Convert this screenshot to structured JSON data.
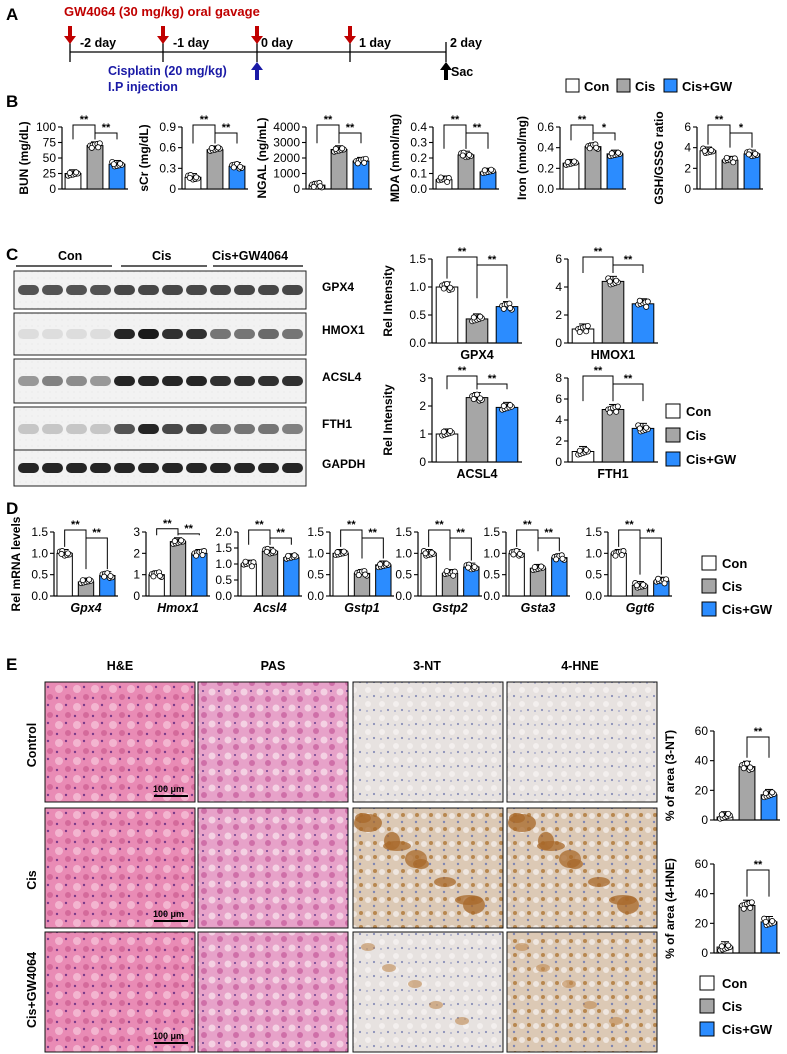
{
  "panels": {
    "A": "A",
    "B": "B",
    "C": "C",
    "D": "D",
    "E": "E"
  },
  "timeline": {
    "treatment": "GW4064 (30 mg/kg) oral gavage",
    "injection_line1": "Cisplatin (20 mg/kg)",
    "injection_line2": "I.P injection",
    "days": [
      "-2 day",
      "-1 day",
      "0 day",
      "1 day",
      "2 day"
    ],
    "sac": "Sac",
    "colors": {
      "gw": "#c00000",
      "cis": "#1a1aa6"
    }
  },
  "legend": {
    "items": [
      "Con",
      "Cis",
      "Cis+GW"
    ],
    "colors": [
      "#ffffff",
      "#a6a6a6",
      "#2b8cff"
    ]
  },
  "legend_c": {
    "items": [
      "Con",
      "Cis",
      "Cis+GW"
    ]
  },
  "western": {
    "groups": [
      "Con",
      "Cis",
      "Cis+GW4064"
    ],
    "bands": [
      "GPX4",
      "HMOX1",
      "ACSL4",
      "FTH1",
      "GAPDH"
    ]
  },
  "histology": {
    "columns": [
      "H&E",
      "PAS",
      "3-NT",
      "4-HNE"
    ],
    "rows": [
      "Control",
      "Cis",
      "Cis+GW4064"
    ],
    "scale_bar": "100 μm"
  },
  "chart_data": [
    {
      "id": "B1",
      "type": "bar",
      "ylabel": "BUN (mg/dL)",
      "ylim": [
        0,
        100
      ],
      "yticks": [
        "0",
        "25",
        "50",
        "75",
        "100"
      ],
      "categories": [
        "Con",
        "Cis",
        "Cis+GW"
      ],
      "values": [
        25,
        70,
        40
      ],
      "sig": [
        {
          "a": 0,
          "b": 1,
          "t": "**"
        },
        {
          "a": 1,
          "b": 2,
          "t": "**"
        }
      ]
    },
    {
      "id": "B2",
      "type": "bar",
      "ylabel": "sCr (mg/dL)",
      "ylim": [
        0,
        0.9
      ],
      "yticks": [
        "0",
        "0.3",
        "0.6",
        "0.9"
      ],
      "categories": [
        "Con",
        "Cis",
        "Cis+GW"
      ],
      "values": [
        0.17,
        0.57,
        0.33
      ],
      "sig": [
        {
          "a": 0,
          "b": 1,
          "t": "**"
        },
        {
          "a": 1,
          "b": 2,
          "t": "**"
        }
      ]
    },
    {
      "id": "B3",
      "type": "bar",
      "ylabel": "NGAL (ng/mL)",
      "ylim": [
        0,
        4000
      ],
      "yticks": [
        "0",
        "1000",
        "2000",
        "3000",
        "4000"
      ],
      "categories": [
        "Con",
        "Cis",
        "Cis+GW"
      ],
      "values": [
        250,
        2550,
        1800
      ],
      "sig": [
        {
          "a": 0,
          "b": 1,
          "t": "**"
        },
        {
          "a": 1,
          "b": 2,
          "t": "**"
        }
      ]
    },
    {
      "id": "B4",
      "type": "bar",
      "ylabel": "MDA (nmol/mg)",
      "ylim": [
        0,
        0.4
      ],
      "yticks": [
        "0.0",
        "0.1",
        "0.2",
        "0.3",
        "0.4"
      ],
      "categories": [
        "Con",
        "Cis",
        "Cis+GW"
      ],
      "values": [
        0.06,
        0.22,
        0.11
      ],
      "sig": [
        {
          "a": 0,
          "b": 1,
          "t": "**"
        },
        {
          "a": 1,
          "b": 2,
          "t": "**"
        }
      ]
    },
    {
      "id": "B5",
      "type": "bar",
      "ylabel": "Iron (nmol/mg)",
      "ylim": [
        0,
        0.6
      ],
      "yticks": [
        "0.0",
        "0.2",
        "0.4",
        "0.6"
      ],
      "categories": [
        "Con",
        "Cis",
        "Cis+GW"
      ],
      "values": [
        0.25,
        0.41,
        0.34
      ],
      "sig": [
        {
          "a": 0,
          "b": 1,
          "t": "**"
        },
        {
          "a": 1,
          "b": 2,
          "t": "*"
        }
      ]
    },
    {
      "id": "B6",
      "type": "bar",
      "ylabel": "GSH/GSSG ratio",
      "ylim": [
        0,
        6
      ],
      "yticks": [
        "0",
        "2",
        "4",
        "6"
      ],
      "categories": [
        "Con",
        "Cis",
        "Cis+GW"
      ],
      "values": [
        3.7,
        2.8,
        3.4
      ],
      "sig": [
        {
          "a": 0,
          "b": 1,
          "t": "**"
        },
        {
          "a": 1,
          "b": 2,
          "t": "*"
        }
      ]
    },
    {
      "id": "C1",
      "type": "bar",
      "ylabel": "Rel Intensity",
      "xlabel": "GPX4",
      "ylim": [
        0,
        1.5
      ],
      "yticks": [
        "0.0",
        "0.5",
        "1.0",
        "1.5"
      ],
      "categories": [
        "Con",
        "Cis",
        "Cis+GW"
      ],
      "values": [
        1.0,
        0.43,
        0.65
      ],
      "sig": [
        {
          "a": 0,
          "b": 1,
          "t": "**"
        },
        {
          "a": 1,
          "b": 2,
          "t": "**"
        }
      ]
    },
    {
      "id": "C2",
      "type": "bar",
      "ylabel": "",
      "xlabel": "HMOX1",
      "ylim": [
        0,
        6
      ],
      "yticks": [
        "0",
        "2",
        "4",
        "6"
      ],
      "categories": [
        "Con",
        "Cis",
        "Cis+GW"
      ],
      "values": [
        1.0,
        4.4,
        2.8
      ],
      "sig": [
        {
          "a": 0,
          "b": 1,
          "t": "**"
        },
        {
          "a": 1,
          "b": 2,
          "t": "**"
        }
      ]
    },
    {
      "id": "C3",
      "type": "bar",
      "ylabel": "Rel Intensity",
      "xlabel": "ACSL4",
      "ylim": [
        0,
        3
      ],
      "yticks": [
        "0",
        "1",
        "2",
        "3"
      ],
      "categories": [
        "Con",
        "Cis",
        "Cis+GW"
      ],
      "values": [
        1.0,
        2.3,
        1.95
      ],
      "sig": [
        {
          "a": 0,
          "b": 1,
          "t": "**"
        },
        {
          "a": 1,
          "b": 2,
          "t": "**"
        }
      ]
    },
    {
      "id": "C4",
      "type": "bar",
      "ylabel": "",
      "xlabel": "FTH1",
      "ylim": [
        0,
        8
      ],
      "yticks": [
        "0",
        "2",
        "4",
        "6",
        "8"
      ],
      "categories": [
        "Con",
        "Cis",
        "Cis+GW"
      ],
      "values": [
        1.0,
        5.0,
        3.2
      ],
      "sig": [
        {
          "a": 0,
          "b": 1,
          "t": "**"
        },
        {
          "a": 1,
          "b": 2,
          "t": "**"
        }
      ]
    },
    {
      "id": "D1",
      "type": "bar",
      "ylabel": "Rel mRNA levels",
      "xlabel": "Gpx4",
      "ylim": [
        0,
        1.5
      ],
      "yticks": [
        "0.0",
        "0.5",
        "1.0",
        "1.5"
      ],
      "categories": [
        "Con",
        "Cis",
        "Cis+GW"
      ],
      "values": [
        1.0,
        0.33,
        0.48
      ],
      "sig": [
        {
          "a": 0,
          "b": 1,
          "t": "**"
        },
        {
          "a": 1,
          "b": 2,
          "t": "**"
        }
      ]
    },
    {
      "id": "D2",
      "type": "bar",
      "ylabel": "",
      "xlabel": "Hmox1",
      "ylim": [
        0,
        3
      ],
      "yticks": [
        "0",
        "1",
        "2",
        "3"
      ],
      "categories": [
        "Con",
        "Cis",
        "Cis+GW"
      ],
      "values": [
        1.0,
        2.55,
        2.0
      ],
      "sig": [
        {
          "a": 0,
          "b": 1,
          "t": "**"
        },
        {
          "a": 1,
          "b": 2,
          "t": "**"
        }
      ]
    },
    {
      "id": "D3",
      "type": "bar",
      "ylabel": "",
      "xlabel": "Acsl4",
      "ylim": [
        0,
        2
      ],
      "yticks": [
        "0.0",
        "0.5",
        "1.0",
        "1.5",
        "2.0"
      ],
      "categories": [
        "Con",
        "Cis",
        "Cis+GW"
      ],
      "values": [
        1.0,
        1.4,
        1.2
      ],
      "sig": [
        {
          "a": 0,
          "b": 1,
          "t": "**"
        },
        {
          "a": 1,
          "b": 2,
          "t": "**"
        }
      ]
    },
    {
      "id": "D4",
      "type": "bar",
      "ylabel": "",
      "xlabel": "Gstp1",
      "ylim": [
        0,
        1.5
      ],
      "yticks": [
        "0.0",
        "0.5",
        "1.0",
        "1.5"
      ],
      "categories": [
        "Con",
        "Cis",
        "Cis+GW"
      ],
      "values": [
        1.0,
        0.53,
        0.73
      ],
      "sig": [
        {
          "a": 0,
          "b": 1,
          "t": "**"
        },
        {
          "a": 1,
          "b": 2,
          "t": "**"
        }
      ]
    },
    {
      "id": "D5",
      "type": "bar",
      "ylabel": "",
      "xlabel": "Gstp2",
      "ylim": [
        0,
        1.5
      ],
      "yticks": [
        "0.0",
        "0.5",
        "1.0",
        "1.5"
      ],
      "categories": [
        "Con",
        "Cis",
        "Cis+GW"
      ],
      "values": [
        1.0,
        0.53,
        0.68
      ],
      "sig": [
        {
          "a": 0,
          "b": 1,
          "t": "**"
        },
        {
          "a": 1,
          "b": 2,
          "t": "**"
        }
      ]
    },
    {
      "id": "D6",
      "type": "bar",
      "ylabel": "",
      "xlabel": "Gsta3",
      "ylim": [
        0,
        1.5
      ],
      "yticks": [
        "0.0",
        "0.5",
        "1.0",
        "1.5"
      ],
      "categories": [
        "Con",
        "Cis",
        "Cis+GW"
      ],
      "values": [
        1.0,
        0.65,
        0.9
      ],
      "sig": [
        {
          "a": 0,
          "b": 1,
          "t": "**"
        },
        {
          "a": 1,
          "b": 2,
          "t": "**"
        }
      ]
    },
    {
      "id": "D7",
      "type": "bar",
      "ylabel": "",
      "xlabel": "Ggt6",
      "ylim": [
        0,
        1.5
      ],
      "yticks": [
        "0.0",
        "0.5",
        "1.0",
        "1.5"
      ],
      "categories": [
        "Con",
        "Cis",
        "Cis+GW"
      ],
      "values": [
        1.0,
        0.25,
        0.35
      ],
      "sig": [
        {
          "a": 0,
          "b": 1,
          "t": "**"
        },
        {
          "a": 1,
          "b": 2,
          "t": "**"
        }
      ]
    },
    {
      "id": "E1",
      "type": "bar",
      "ylabel": "% of area (3-NT)",
      "ylim": [
        0,
        60
      ],
      "yticks": [
        "0",
        "20",
        "40",
        "60"
      ],
      "categories": [
        "Con",
        "Cis",
        "Cis+GW"
      ],
      "values": [
        2,
        36,
        17
      ],
      "sig": [
        {
          "a": 1,
          "b": 2,
          "t": "**"
        }
      ]
    },
    {
      "id": "E2",
      "type": "bar",
      "ylabel": "% of area (4-HNE)",
      "ylim": [
        0,
        60
      ],
      "yticks": [
        "0",
        "20",
        "40",
        "60"
      ],
      "categories": [
        "Con",
        "Cis",
        "Cis+GW"
      ],
      "values": [
        4,
        32,
        21
      ],
      "sig": [
        {
          "a": 1,
          "b": 2,
          "t": "**"
        }
      ]
    }
  ]
}
